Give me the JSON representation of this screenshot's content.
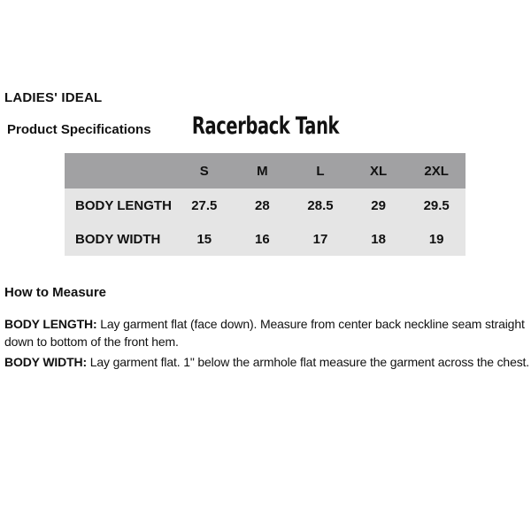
{
  "page": {
    "brand": "LADIES' IDEAL",
    "section_label": "Product Specifications",
    "product_title": "Racerback Tank"
  },
  "size_chart": {
    "header_bg_color": "#a1a1a3",
    "body_bg_color": "#e5e5e5",
    "columns": [
      "",
      "S",
      "M",
      "L",
      "XL",
      "2XL"
    ],
    "rows": [
      {
        "label": "BODY LENGTH",
        "values": [
          "27.5",
          "28",
          "28.5",
          "29",
          "29.5"
        ]
      },
      {
        "label": "BODY WIDTH",
        "values": [
          "15",
          "16",
          "17",
          "18",
          "19"
        ]
      }
    ]
  },
  "how_to_measure": {
    "heading": "How to Measure",
    "items": [
      {
        "term": "BODY LENGTH:",
        "description": "Lay garment flat (face down). Measure from center back neckline seam straight down to bottom of the front hem."
      },
      {
        "term": "BODY WIDTH:",
        "description": "Lay garment flat. 1\" below the armhole flat measure the garment across the chest."
      }
    ]
  }
}
